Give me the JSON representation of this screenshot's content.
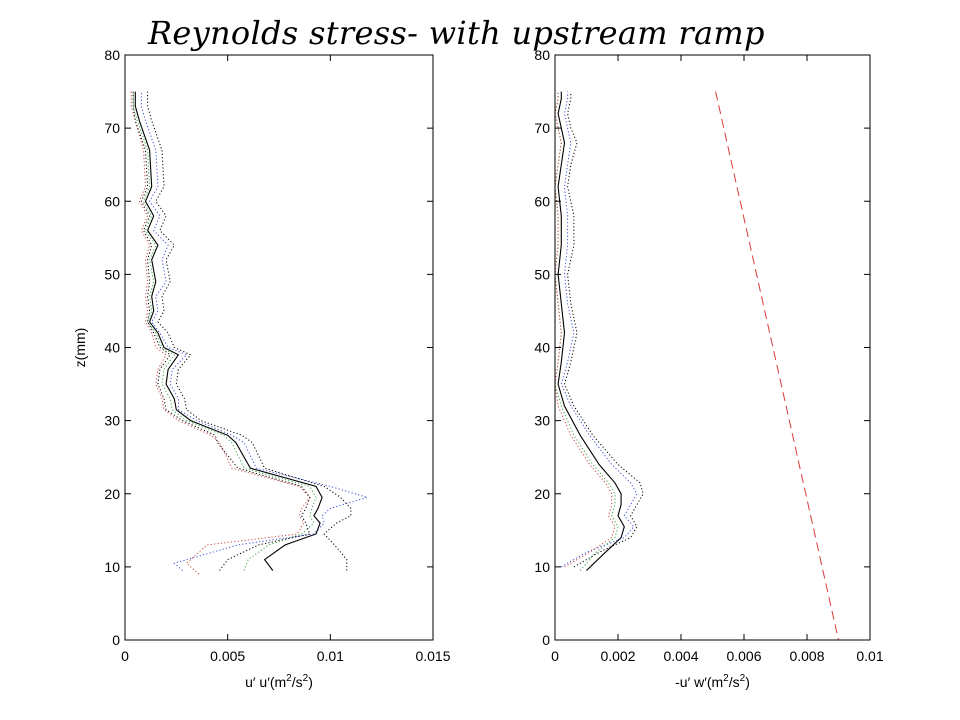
{
  "title": "Reynolds stress- with upstream ramp",
  "colors": {
    "black": "#000000",
    "blue": "#3b4fd8",
    "green": "#3aa845",
    "red": "#d04848",
    "dashed_red": "#d93a3a"
  },
  "chart_data": [
    {
      "type": "line",
      "xlabel": "u′ u′(m²/s²)",
      "xlabel_parts": {
        "pre": "u′ u′(m",
        "sup1": "2",
        "mid": "/s",
        "sup2": "2",
        "post": ")"
      },
      "ylabel": "z(mm)",
      "xlim": [
        0,
        0.015
      ],
      "ylim": [
        0,
        80
      ],
      "xticks": [
        0,
        0.005,
        0.01,
        0.015
      ],
      "xtick_labels": [
        "0",
        "0.005",
        "0.01",
        "0.015"
      ],
      "yticks": [
        0,
        10,
        20,
        30,
        40,
        50,
        60,
        70,
        80
      ],
      "ytick_labels": [
        "0",
        "10",
        "20",
        "30",
        "40",
        "50",
        "60",
        "70",
        "80"
      ],
      "series": [
        {
          "color": "black",
          "style": "solid",
          "x": [
            0.0072,
            0.0068,
            0.0078,
            0.0093,
            0.0095,
            0.0092,
            0.0094,
            0.0096,
            0.0093,
            0.0061,
            0.0054,
            0.005,
            0.0032,
            0.0025,
            0.0024,
            0.002,
            0.0021,
            0.0026,
            0.0019,
            0.0016,
            0.0012,
            0.0014,
            0.0013,
            0.0015,
            0.0013,
            0.0016,
            0.0011,
            0.0014,
            0.001,
            0.0013,
            0.0012,
            0.0007,
            0.0005,
            0.0005
          ],
          "y": [
            9.5,
            11,
            13,
            14.5,
            16,
            17,
            18,
            19.5,
            21,
            23.5,
            27,
            28,
            30,
            31.5,
            33,
            35,
            37,
            39,
            40,
            42,
            43.5,
            45,
            47,
            49,
            52,
            54,
            56,
            58,
            60,
            62,
            67,
            71,
            73,
            75
          ]
        },
        {
          "color": "blue",
          "style": "dotted",
          "x": [
            0.0028,
            0.0024,
            0.0055,
            0.0092,
            0.0097,
            0.0096,
            0.01,
            0.0118,
            0.01,
            0.0064,
            0.0058,
            0.0052,
            0.0035,
            0.0026,
            0.0026,
            0.0022,
            0.0023,
            0.003,
            0.0021,
            0.0017,
            0.0013,
            0.0016,
            0.0015,
            0.002,
            0.0018,
            0.0021,
            0.0014,
            0.0017,
            0.0012,
            0.0016,
            0.0015,
            0.001,
            0.0008,
            0.0008
          ],
          "y": [
            9.5,
            10.5,
            13,
            14.5,
            16,
            17,
            18,
            19.5,
            21,
            23.5,
            27,
            28,
            30,
            31.5,
            33,
            35,
            37,
            39,
            40,
            42,
            43.5,
            45,
            47,
            49,
            52,
            54,
            56,
            58,
            60,
            62,
            67,
            71,
            73,
            75
          ]
        },
        {
          "color": "green",
          "style": "dotted",
          "x": [
            0.0058,
            0.006,
            0.007,
            0.0086,
            0.0092,
            0.009,
            0.0091,
            0.0093,
            0.009,
            0.0058,
            0.0052,
            0.0048,
            0.003,
            0.0023,
            0.0022,
            0.0018,
            0.0019,
            0.0024,
            0.0018,
            0.0015,
            0.0011,
            0.0013,
            0.0012,
            0.0014,
            0.0012,
            0.0015,
            0.001,
            0.0013,
            0.0009,
            0.0012,
            0.0011,
            0.0006,
            0.0004,
            0.0004
          ],
          "y": [
            9.5,
            11,
            13,
            14.5,
            16,
            17,
            18,
            19.5,
            21,
            23.5,
            27,
            28,
            30,
            31.5,
            33,
            35,
            37,
            39,
            40,
            42,
            43.5,
            45,
            47,
            49,
            52,
            54,
            56,
            58,
            60,
            62,
            67,
            71,
            73,
            75
          ]
        },
        {
          "color": "red",
          "style": "dotted",
          "x": [
            0.0036,
            0.003,
            0.004,
            0.0084,
            0.0087,
            0.0085,
            0.0086,
            0.009,
            0.0085,
            0.0052,
            0.0046,
            0.0042,
            0.0026,
            0.0019,
            0.0018,
            0.0015,
            0.0016,
            0.002,
            0.0015,
            0.0013,
            0.001,
            0.0011,
            0.001,
            0.0011,
            0.001,
            0.0012,
            0.0008,
            0.0011,
            0.0007,
            0.001,
            0.0009,
            0.0005,
            0.0003,
            0.0003
          ],
          "y": [
            9,
            10.5,
            13,
            14.5,
            16,
            17,
            18,
            19.5,
            21,
            23.5,
            27,
            28,
            30,
            31.5,
            33,
            35,
            37,
            39,
            40,
            42,
            43.5,
            45,
            47,
            49,
            52,
            54,
            56,
            58,
            60,
            62,
            67,
            71,
            73,
            75
          ]
        },
        {
          "color": "black",
          "style": "dotted",
          "x": [
            0.0108,
            0.0108,
            0.0102,
            0.0097,
            0.0103,
            0.011,
            0.011,
            0.0105,
            0.0097,
            0.0068,
            0.0062,
            0.0057,
            0.0037,
            0.003,
            0.0029,
            0.0025,
            0.0026,
            0.0032,
            0.0024,
            0.0021,
            0.0016,
            0.0019,
            0.0018,
            0.0022,
            0.002,
            0.0024,
            0.0017,
            0.002,
            0.0015,
            0.0019,
            0.0018,
            0.0013,
            0.0011,
            0.0011
          ],
          "y": [
            9.5,
            11,
            13,
            14.5,
            16,
            17,
            18,
            19.5,
            21,
            23.5,
            27,
            28,
            30,
            31.5,
            33,
            35,
            37,
            39,
            40,
            42,
            43.5,
            45,
            47,
            49,
            52,
            54,
            56,
            58,
            60,
            62,
            67,
            71,
            73,
            75
          ]
        },
        {
          "color": "black",
          "style": "dotted",
          "x": [
            0.0046,
            0.005,
            0.0065,
            0.009,
            0.0088,
            0.0086,
            0.0088,
            0.009,
            0.0086,
            0.0055,
            0.0045,
            0.0044,
            0.0028,
            0.002,
            0.0019,
            0.0016,
            0.0017,
            0.0022,
            0.0017,
            0.0014,
            0.0011,
            0.0012,
            0.0011,
            0.0012,
            0.0011,
            0.0013,
            0.0009,
            0.0012,
            0.0008,
            0.0011,
            0.001,
            0.0005,
            0.0004,
            0.0004
          ],
          "y": [
            9.5,
            11,
            13,
            14.5,
            16,
            17,
            18,
            19.5,
            21,
            23.5,
            27,
            28,
            30,
            31.5,
            33,
            35,
            37,
            39,
            40,
            42,
            43.5,
            45,
            47,
            49,
            52,
            54,
            56,
            58,
            60,
            62,
            67,
            71,
            73,
            75
          ]
        }
      ]
    },
    {
      "type": "line",
      "xlabel": "-u′ w′(m²/s²)",
      "xlabel_parts": {
        "pre": "-u′ w′(m",
        "sup1": "2",
        "mid": "/s",
        "sup2": "2",
        "post": ")"
      },
      "ylabel": "",
      "xlim": [
        0,
        0.01
      ],
      "ylim": [
        0,
        80
      ],
      "xticks": [
        0,
        0.002,
        0.004,
        0.006,
        0.008,
        0.01
      ],
      "xtick_labels": [
        "0",
        "0.002",
        "0.004",
        "0.006",
        "0.008",
        "0.01"
      ],
      "yticks": [
        0,
        10,
        20,
        30,
        40,
        50,
        60,
        70,
        80
      ],
      "ytick_labels": [
        "0",
        "10",
        "20",
        "30",
        "40",
        "50",
        "60",
        "70",
        "80"
      ],
      "series": [
        {
          "color": "black",
          "style": "solid",
          "x": [
            0.001,
            0.0016,
            0.0021,
            0.0022,
            0.002,
            0.0021,
            0.0021,
            0.0019,
            0.0014,
            0.0008,
            0.0003,
            0.0001,
            0.0002,
            0.0003,
            0.0002,
            0.0001,
            0.0002,
            0.0002,
            0.0001,
            0.0002,
            0.0003,
            0.0002,
            0.0001,
            0.0002,
            0.0002
          ],
          "y": [
            9.5,
            12,
            14,
            15.5,
            17,
            18.5,
            20,
            21.5,
            24,
            28,
            32,
            35,
            38,
            42,
            46,
            50,
            54,
            58,
            62,
            65,
            68,
            70,
            72,
            74,
            75
          ]
        },
        {
          "color": "blue",
          "style": "dotted",
          "x": [
            0.0002,
            0.001,
            0.0022,
            0.0025,
            0.0022,
            0.0024,
            0.0026,
            0.0024,
            0.0018,
            0.0011,
            0.0005,
            0.0002,
            0.0004,
            0.0006,
            0.0004,
            0.0003,
            0.0004,
            0.0004,
            0.0003,
            0.0004,
            0.0005,
            0.0004,
            0.0003,
            0.0004,
            0.0004
          ],
          "y": [
            10,
            12,
            14,
            15.5,
            17,
            18.5,
            20,
            21.5,
            24,
            28,
            32,
            35,
            38,
            42,
            46,
            50,
            54,
            58,
            62,
            65,
            68,
            70,
            72,
            74,
            75
          ]
        },
        {
          "color": "green",
          "style": "dotted",
          "x": [
            0.0008,
            0.0013,
            0.0019,
            0.002,
            0.0018,
            0.0019,
            0.0019,
            0.0017,
            0.0012,
            0.0006,
            0.0002,
            0.0,
            0.0001,
            0.0002,
            0.0001,
            0.0,
            0.0001,
            0.0001,
            0.0,
            0.0001,
            0.0002,
            0.0001,
            0.0,
            0.0001,
            0.0001
          ],
          "y": [
            9.5,
            12,
            14,
            15.5,
            17,
            18.5,
            20,
            21.5,
            24,
            28,
            32,
            35,
            38,
            42,
            46,
            50,
            54,
            58,
            62,
            65,
            68,
            70,
            72,
            74,
            75
          ]
        },
        {
          "color": "red",
          "style": "dotted",
          "x": [
            0.0003,
            0.0011,
            0.0018,
            0.0019,
            0.0017,
            0.0018,
            0.0018,
            0.0016,
            0.0011,
            0.0005,
            0.0001,
            0.0,
            0.0001,
            0.0002,
            0.0001,
            0.0,
            0.0001,
            0.0001,
            0.0,
            0.0001,
            0.0002,
            0.0001,
            0.0,
            0.0001,
            0.0001
          ],
          "y": [
            10,
            12,
            14,
            15.5,
            17,
            18.5,
            20,
            21.5,
            24,
            28,
            32,
            35,
            38,
            42,
            46,
            50,
            54,
            58,
            62,
            65,
            68,
            70,
            72,
            74,
            75
          ]
        },
        {
          "color": "black",
          "style": "dotted",
          "x": [
            0.0006,
            0.0014,
            0.0024,
            0.0026,
            0.0024,
            0.0026,
            0.0028,
            0.0027,
            0.002,
            0.0012,
            0.0006,
            0.0003,
            0.0005,
            0.0007,
            0.0005,
            0.0004,
            0.0006,
            0.0006,
            0.0004,
            0.0005,
            0.0007,
            0.0005,
            0.0004,
            0.0005,
            0.0005
          ],
          "y": [
            10,
            12,
            14,
            15.5,
            17,
            18.5,
            20,
            21.5,
            24,
            28,
            32,
            35,
            38,
            42,
            46,
            50,
            54,
            58,
            62,
            65,
            68,
            70,
            72,
            74,
            75
          ]
        },
        {
          "color": "dashed_red",
          "style": "dashed",
          "x": [
            0.0051,
            0.009
          ],
          "y": [
            75,
            0
          ]
        }
      ]
    }
  ]
}
